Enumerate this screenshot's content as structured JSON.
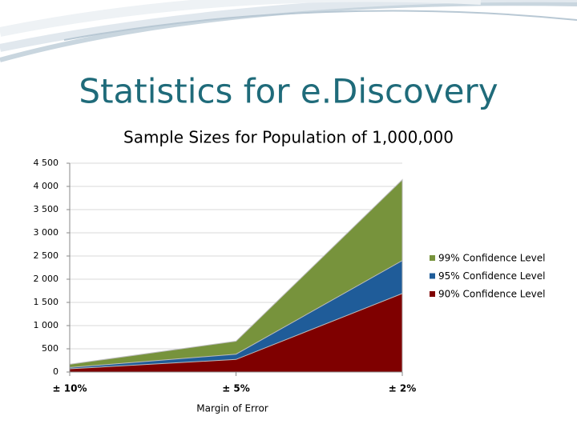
{
  "slide_title": "Statistics for e.Discovery",
  "chart_data": {
    "type": "area",
    "title": "Sample Sizes for Population of 1,000,000",
    "x_label": "Margin of Error",
    "categories": [
      "± 10%",
      "± 5%",
      "± 2%"
    ],
    "series": [
      {
        "name": "99% Confidence Level",
        "color": "#77933c",
        "values": [
          166,
          663,
          4143
        ]
      },
      {
        "name": "95% Confidence Level",
        "color": "#1f5c99",
        "values": [
          96,
          384,
          2401
        ]
      },
      {
        "name": "90% Confidence Level",
        "color": "#7f0000",
        "values": [
          68,
          271,
          1691
        ]
      }
    ],
    "ylim": [
      0,
      4500
    ],
    "yticks": [
      0,
      500,
      {
        "value": 1000,
        "label": "1 000"
      },
      {
        "value": 1500,
        "label": "1 500"
      },
      {
        "value": 2000,
        "label": "2 000"
      },
      {
        "value": 2500,
        "label": "2 500"
      },
      {
        "value": 3000,
        "label": "3 000"
      },
      {
        "value": 3500,
        "label": "3 500"
      },
      {
        "value": 4000,
        "label": "4 000"
      },
      {
        "value": 4500,
        "label": "4 500"
      }
    ],
    "grid": true,
    "legend": "right"
  }
}
